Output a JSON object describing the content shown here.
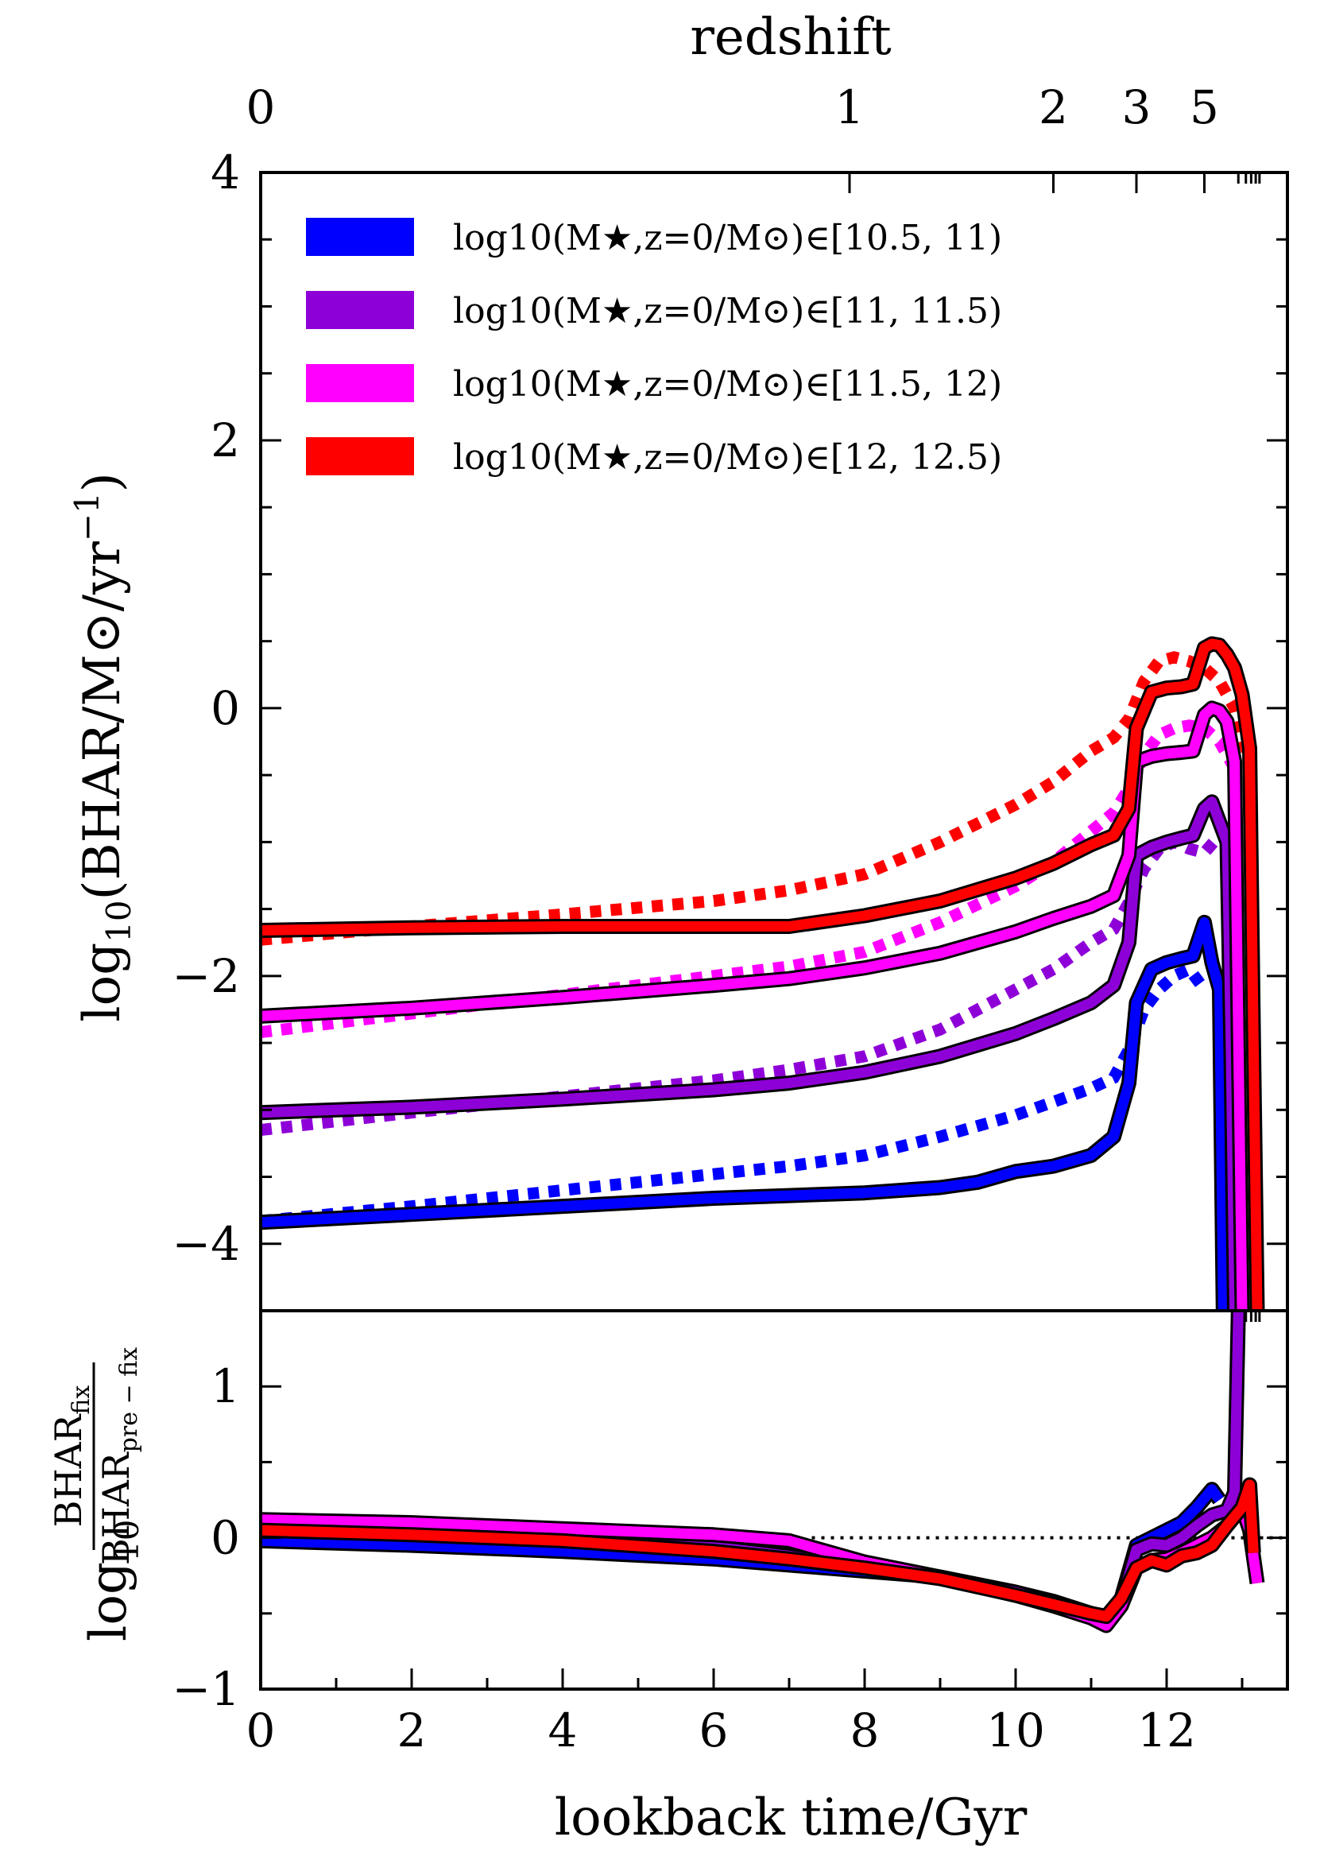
{
  "chart_data": [
    {
      "type": "line",
      "panel": "top",
      "ylabel": "log10(BHAR/M⊙/yr⁻¹)",
      "ylabel_main": "log",
      "ylabel_sub": "10",
      "ylabel_rest": "(BHAR/M⊙/yr",
      "ylabel_sup": "−1",
      "ylabel_close": ")",
      "xlabel_top": "redshift",
      "xlim": [
        0,
        13.6
      ],
      "ylim": [
        -4.5,
        4
      ],
      "yticks": [
        4,
        2,
        0,
        -2,
        -4
      ],
      "yticklabels": [
        "4",
        "2",
        "0",
        "−2",
        "−4"
      ],
      "top_ticks": [
        {
          "t": 0,
          "label": "0"
        },
        {
          "t": 7.8,
          "label": "1"
        },
        {
          "t": 10.5,
          "label": "2"
        },
        {
          "t": 11.6,
          "label": "3"
        },
        {
          "t": 12.5,
          "label": "5"
        }
      ],
      "legend_prefix": "log10(M★,z=0/M⊙)∈",
      "legend": [
        {
          "name": "[10.5, 11)",
          "color": "#0000ff"
        },
        {
          "name": "[11, 11.5)",
          "color": "#8e00d8"
        },
        {
          "name": "[11.5, 12)",
          "color": "#ff00ff"
        },
        {
          "name": "[12, 12.5)",
          "color": "#ff0000"
        }
      ],
      "series": [
        {
          "name": "[10.5, 11) fix",
          "style": "solid",
          "color": "#0000ff",
          "x": [
            0,
            2,
            4,
            6,
            7,
            8,
            9,
            9.5,
            10,
            10.5,
            11,
            11.3,
            11.5,
            11.6,
            11.8,
            12,
            12.2,
            12.35,
            12.5,
            12.6,
            12.7,
            12.75
          ],
          "y": [
            -3.84,
            -3.78,
            -3.72,
            -3.66,
            -3.64,
            -3.62,
            -3.58,
            -3.54,
            -3.46,
            -3.42,
            -3.34,
            -3.2,
            -2.8,
            -2.2,
            -1.95,
            -1.9,
            -1.87,
            -1.85,
            -1.6,
            -1.9,
            -2.1,
            -4.5
          ]
        },
        {
          "name": "[10.5, 11) pre-fix",
          "style": "dotted",
          "color": "#0000ff",
          "x": [
            0,
            2,
            4,
            6,
            7,
            8,
            9,
            10,
            10.5,
            11,
            11.3,
            11.5,
            11.7,
            11.9,
            12.1,
            12.3,
            12.5
          ],
          "y": [
            -3.83,
            -3.72,
            -3.6,
            -3.48,
            -3.42,
            -3.34,
            -3.2,
            -3.04,
            -2.94,
            -2.84,
            -2.76,
            -2.55,
            -2.25,
            -2.1,
            -2.0,
            -1.95,
            -2.1
          ]
        },
        {
          "name": "[11, 11.5) fix",
          "style": "solid",
          "color": "#8e00d8",
          "x": [
            0,
            2,
            4,
            6,
            7,
            8,
            9,
            10,
            10.5,
            11,
            11.3,
            11.5,
            11.6,
            11.8,
            12,
            12.2,
            12.35,
            12.5,
            12.6,
            12.7,
            12.8,
            12.85,
            12.9
          ],
          "y": [
            -3.02,
            -2.98,
            -2.92,
            -2.85,
            -2.8,
            -2.72,
            -2.6,
            -2.43,
            -2.32,
            -2.2,
            -2.07,
            -1.75,
            -1.1,
            -1.04,
            -1.0,
            -0.97,
            -0.95,
            -0.75,
            -0.7,
            -0.85,
            -1.0,
            -2.5,
            -4.5
          ]
        },
        {
          "name": "[11, 11.5) pre-fix",
          "style": "dotted",
          "color": "#8e00d8",
          "x": [
            0,
            2,
            4,
            6,
            7,
            8,
            9,
            10,
            10.5,
            11,
            11.3,
            11.5,
            11.7,
            11.9,
            12.1,
            12.3,
            12.5,
            12.7
          ],
          "y": [
            -3.15,
            -3.02,
            -2.9,
            -2.78,
            -2.7,
            -2.6,
            -2.4,
            -2.1,
            -1.95,
            -1.75,
            -1.65,
            -1.45,
            -1.2,
            -1.05,
            -1.0,
            -1.05,
            -1.08,
            -0.95
          ]
        },
        {
          "name": "[11.5, 12) fix",
          "style": "solid",
          "color": "#ff00ff",
          "x": [
            0,
            2,
            4,
            6,
            7,
            8,
            9,
            10,
            10.5,
            11,
            11.3,
            11.5,
            11.6,
            11.8,
            12,
            12.2,
            12.35,
            12.5,
            12.6,
            12.7,
            12.8,
            12.9,
            12.95,
            13.0
          ],
          "y": [
            -2.3,
            -2.24,
            -2.16,
            -2.07,
            -2.02,
            -1.94,
            -1.83,
            -1.67,
            -1.57,
            -1.48,
            -1.4,
            -1.1,
            -0.4,
            -0.36,
            -0.34,
            -0.33,
            -0.32,
            -0.05,
            0.0,
            -0.02,
            -0.1,
            -0.4,
            -2.5,
            -4.5
          ]
        },
        {
          "name": "[11.5, 12) pre-fix",
          "style": "dotted",
          "color": "#ff00ff",
          "x": [
            0,
            2,
            4,
            6,
            7,
            8,
            9,
            10,
            10.5,
            11,
            11.3,
            11.5,
            11.7,
            11.9,
            12.1,
            12.3,
            12.5,
            12.7,
            12.9
          ],
          "y": [
            -2.42,
            -2.28,
            -2.14,
            -2.0,
            -1.93,
            -1.82,
            -1.6,
            -1.33,
            -1.15,
            -0.92,
            -0.78,
            -0.6,
            -0.35,
            -0.2,
            -0.15,
            -0.13,
            -0.15,
            -0.25,
            -0.45
          ]
        },
        {
          "name": "[12, 12.5) fix",
          "style": "solid",
          "color": "#ff0000",
          "x": [
            0,
            2,
            4,
            6,
            7,
            8,
            9,
            10,
            10.5,
            11,
            11.3,
            11.5,
            11.6,
            11.8,
            12,
            12.2,
            12.35,
            12.5,
            12.6,
            12.7,
            12.8,
            12.9,
            13.0,
            13.1,
            13.15,
            13.2
          ],
          "y": [
            -1.66,
            -1.64,
            -1.63,
            -1.63,
            -1.63,
            -1.55,
            -1.44,
            -1.27,
            -1.16,
            -1.02,
            -0.95,
            -0.75,
            -0.15,
            0.12,
            0.15,
            0.16,
            0.18,
            0.45,
            0.48,
            0.47,
            0.4,
            0.3,
            0.1,
            -0.3,
            -2.5,
            -4.5
          ]
        },
        {
          "name": "[12, 12.5) pre-fix",
          "style": "dotted",
          "color": "#ff0000",
          "x": [
            0,
            2,
            4,
            6,
            7,
            8,
            9,
            10,
            10.5,
            11,
            11.3,
            11.5,
            11.7,
            11.9,
            12.1,
            12.3,
            12.5,
            12.7,
            12.9,
            13.1
          ],
          "y": [
            -1.73,
            -1.63,
            -1.54,
            -1.44,
            -1.36,
            -1.24,
            -1.0,
            -0.72,
            -0.55,
            -0.32,
            -0.22,
            -0.08,
            0.2,
            0.35,
            0.38,
            0.35,
            0.3,
            0.2,
            0.0,
            -0.4
          ]
        }
      ]
    },
    {
      "type": "line",
      "panel": "bottom",
      "xlabel": "lookback time/Gyr",
      "ylabel": "log10 BHAR_fix / BHAR_pre-fix",
      "ylabel_log": "log",
      "ylabel_sub": "10",
      "ylabel_num": "BHAR",
      "ylabel_num_sub": "fix",
      "ylabel_den": "BHAR",
      "ylabel_den_sub": "pre − fix",
      "xlim": [
        0,
        13.6
      ],
      "ylim": [
        -1,
        1.5
      ],
      "xticks": [
        0,
        2,
        4,
        6,
        8,
        10,
        12
      ],
      "xticklabels": [
        "0",
        "2",
        "4",
        "6",
        "8",
        "10",
        "12"
      ],
      "yticks": [
        1,
        0,
        -1
      ],
      "yticklabels": [
        "1",
        "0",
        "−1"
      ],
      "reference_line": {
        "y": 0,
        "style": "dotted",
        "x": [
          7.3,
          13.6
        ]
      },
      "series": [
        {
          "name": "[10.5, 11)",
          "color": "#0000ff",
          "x": [
            0,
            2,
            4,
            6,
            7,
            8,
            9,
            10,
            10.5,
            11,
            11.2,
            11.4,
            11.6,
            11.8,
            12,
            12.2,
            12.4,
            12.6,
            12.7
          ],
          "y": [
            -0.02,
            -0.05,
            -0.09,
            -0.14,
            -0.18,
            -0.22,
            -0.26,
            -0.36,
            -0.42,
            -0.5,
            -0.55,
            -0.4,
            -0.05,
            0.0,
            0.05,
            0.1,
            0.2,
            0.32,
            0.25
          ]
        },
        {
          "name": "[11, 11.5)",
          "color": "#8e00d8",
          "x": [
            0,
            2,
            4,
            6,
            7,
            8,
            9,
            10,
            10.5,
            11,
            11.2,
            11.4,
            11.6,
            11.8,
            12,
            12.2,
            12.4,
            12.6,
            12.8,
            12.9,
            12.95
          ],
          "y": [
            0.1,
            0.06,
            0.02,
            -0.06,
            -0.12,
            -0.2,
            -0.26,
            -0.36,
            -0.43,
            -0.52,
            -0.55,
            -0.42,
            -0.08,
            -0.04,
            -0.05,
            0.0,
            0.08,
            0.15,
            0.18,
            0.3,
            1.5
          ]
        },
        {
          "name": "[11.5, 12)",
          "color": "#ff00ff",
          "x": [
            0,
            2,
            4,
            6,
            7,
            8,
            9,
            10,
            10.5,
            11,
            11.2,
            11.4,
            11.6,
            11.8,
            12,
            12.2,
            12.4,
            12.6,
            12.8,
            13.0,
            13.1,
            13.2
          ],
          "y": [
            0.12,
            0.1,
            0.06,
            0.02,
            -0.02,
            -0.16,
            -0.26,
            -0.38,
            -0.45,
            -0.53,
            -0.58,
            -0.45,
            -0.2,
            -0.15,
            -0.14,
            -0.1,
            -0.05,
            0.0,
            0.08,
            0.2,
            0.05,
            -0.3
          ]
        },
        {
          "name": "[12, 12.5)",
          "color": "#ff0000",
          "x": [
            0,
            2,
            4,
            6,
            7,
            8,
            9,
            10,
            10.5,
            11,
            11.2,
            11.4,
            11.6,
            11.8,
            12,
            12.2,
            12.4,
            12.6,
            12.8,
            13.0,
            13.1,
            13.15
          ],
          "y": [
            0.05,
            0.02,
            -0.02,
            -0.09,
            -0.14,
            -0.2,
            -0.27,
            -0.38,
            -0.44,
            -0.5,
            -0.52,
            -0.4,
            -0.2,
            -0.15,
            -0.18,
            -0.12,
            -0.1,
            -0.05,
            0.08,
            0.2,
            0.35,
            -0.1
          ]
        }
      ]
    }
  ]
}
